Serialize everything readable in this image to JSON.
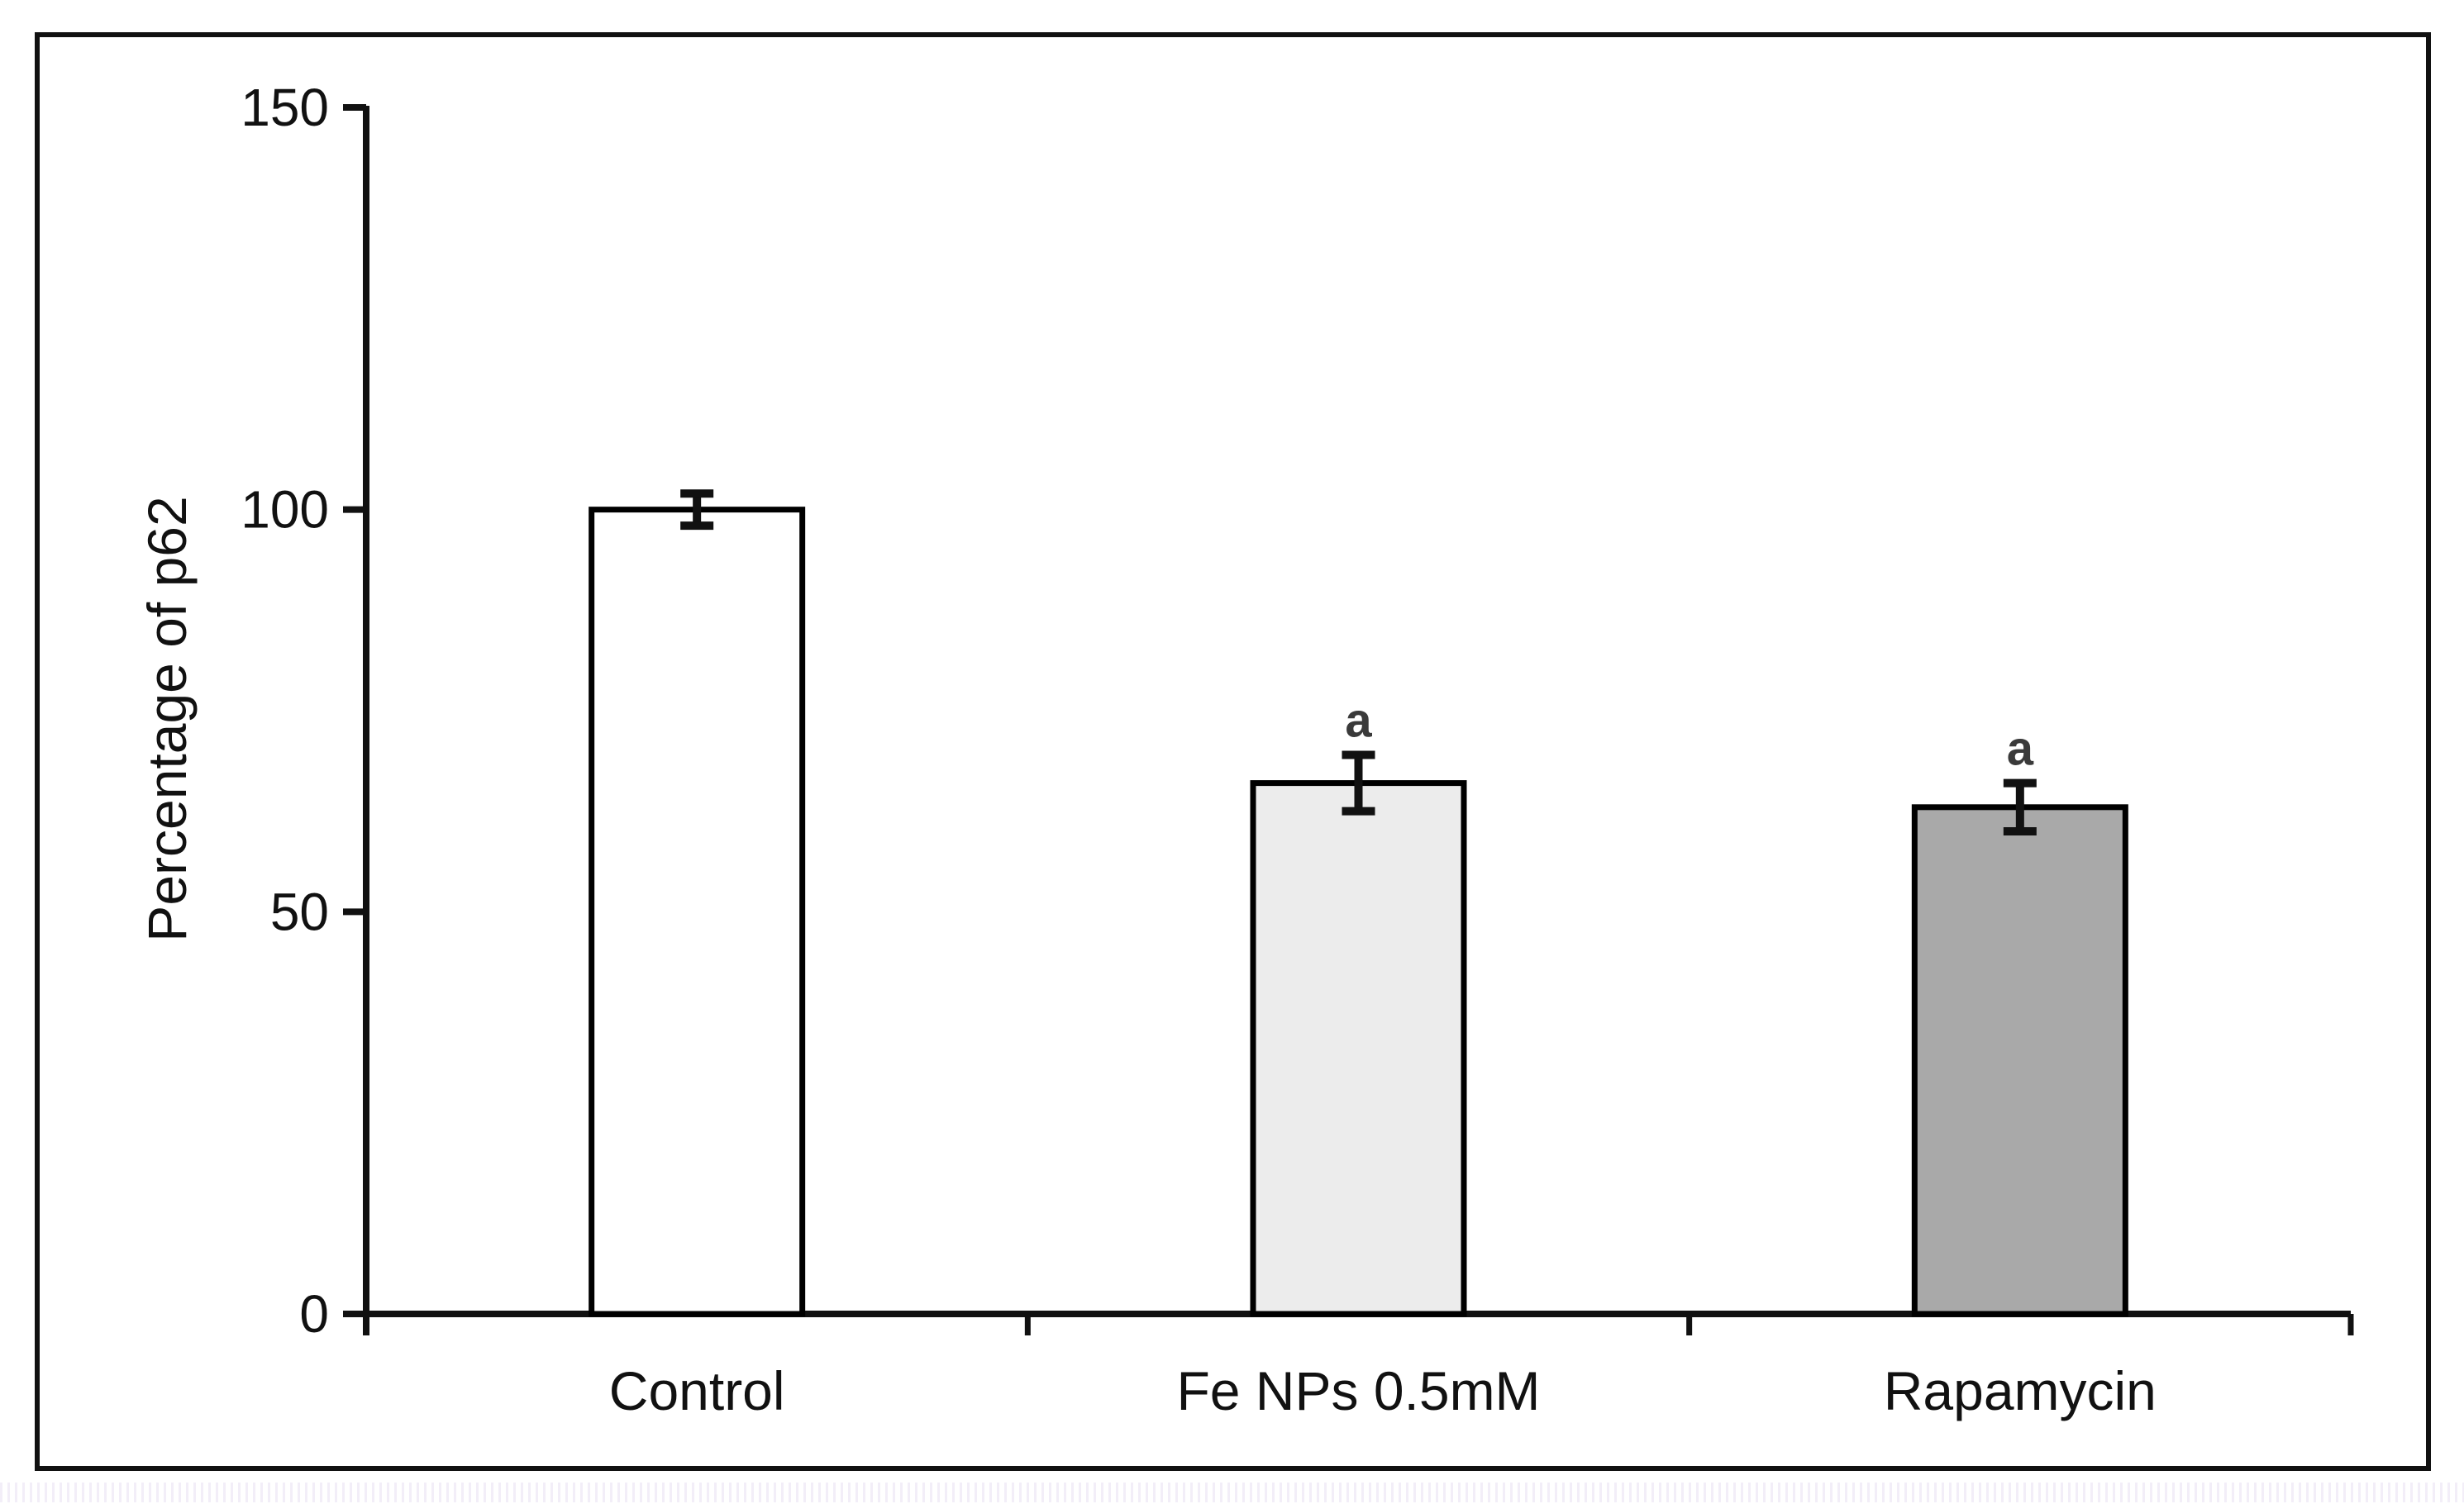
{
  "figure": {
    "background": "#ffffff",
    "border_color": "#111111",
    "axis_color": "#111111",
    "error_bar_color": "#111111"
  },
  "chart_data": {
    "type": "bar",
    "title": "",
    "xlabel": "",
    "ylabel": "Percentage of p62",
    "categories": [
      "Control",
      "Fe NPs 0.5mM",
      "Rapamycin"
    ],
    "values": [
      100,
      66,
      63
    ],
    "error_bars": [
      2,
      3.5,
      3
    ],
    "significance_labels": [
      "",
      "a",
      "a"
    ],
    "bar_colors": [
      "#ffffff",
      "#ececec",
      "#a9a9a9"
    ],
    "bar_border_color": "#000000",
    "yticks": [
      0,
      50,
      100,
      150
    ],
    "ytick_labels": [
      "0",
      "50",
      "100",
      "150"
    ],
    "ylim": [
      0,
      150
    ],
    "grid": false,
    "legend": null,
    "legend_position": "none"
  }
}
